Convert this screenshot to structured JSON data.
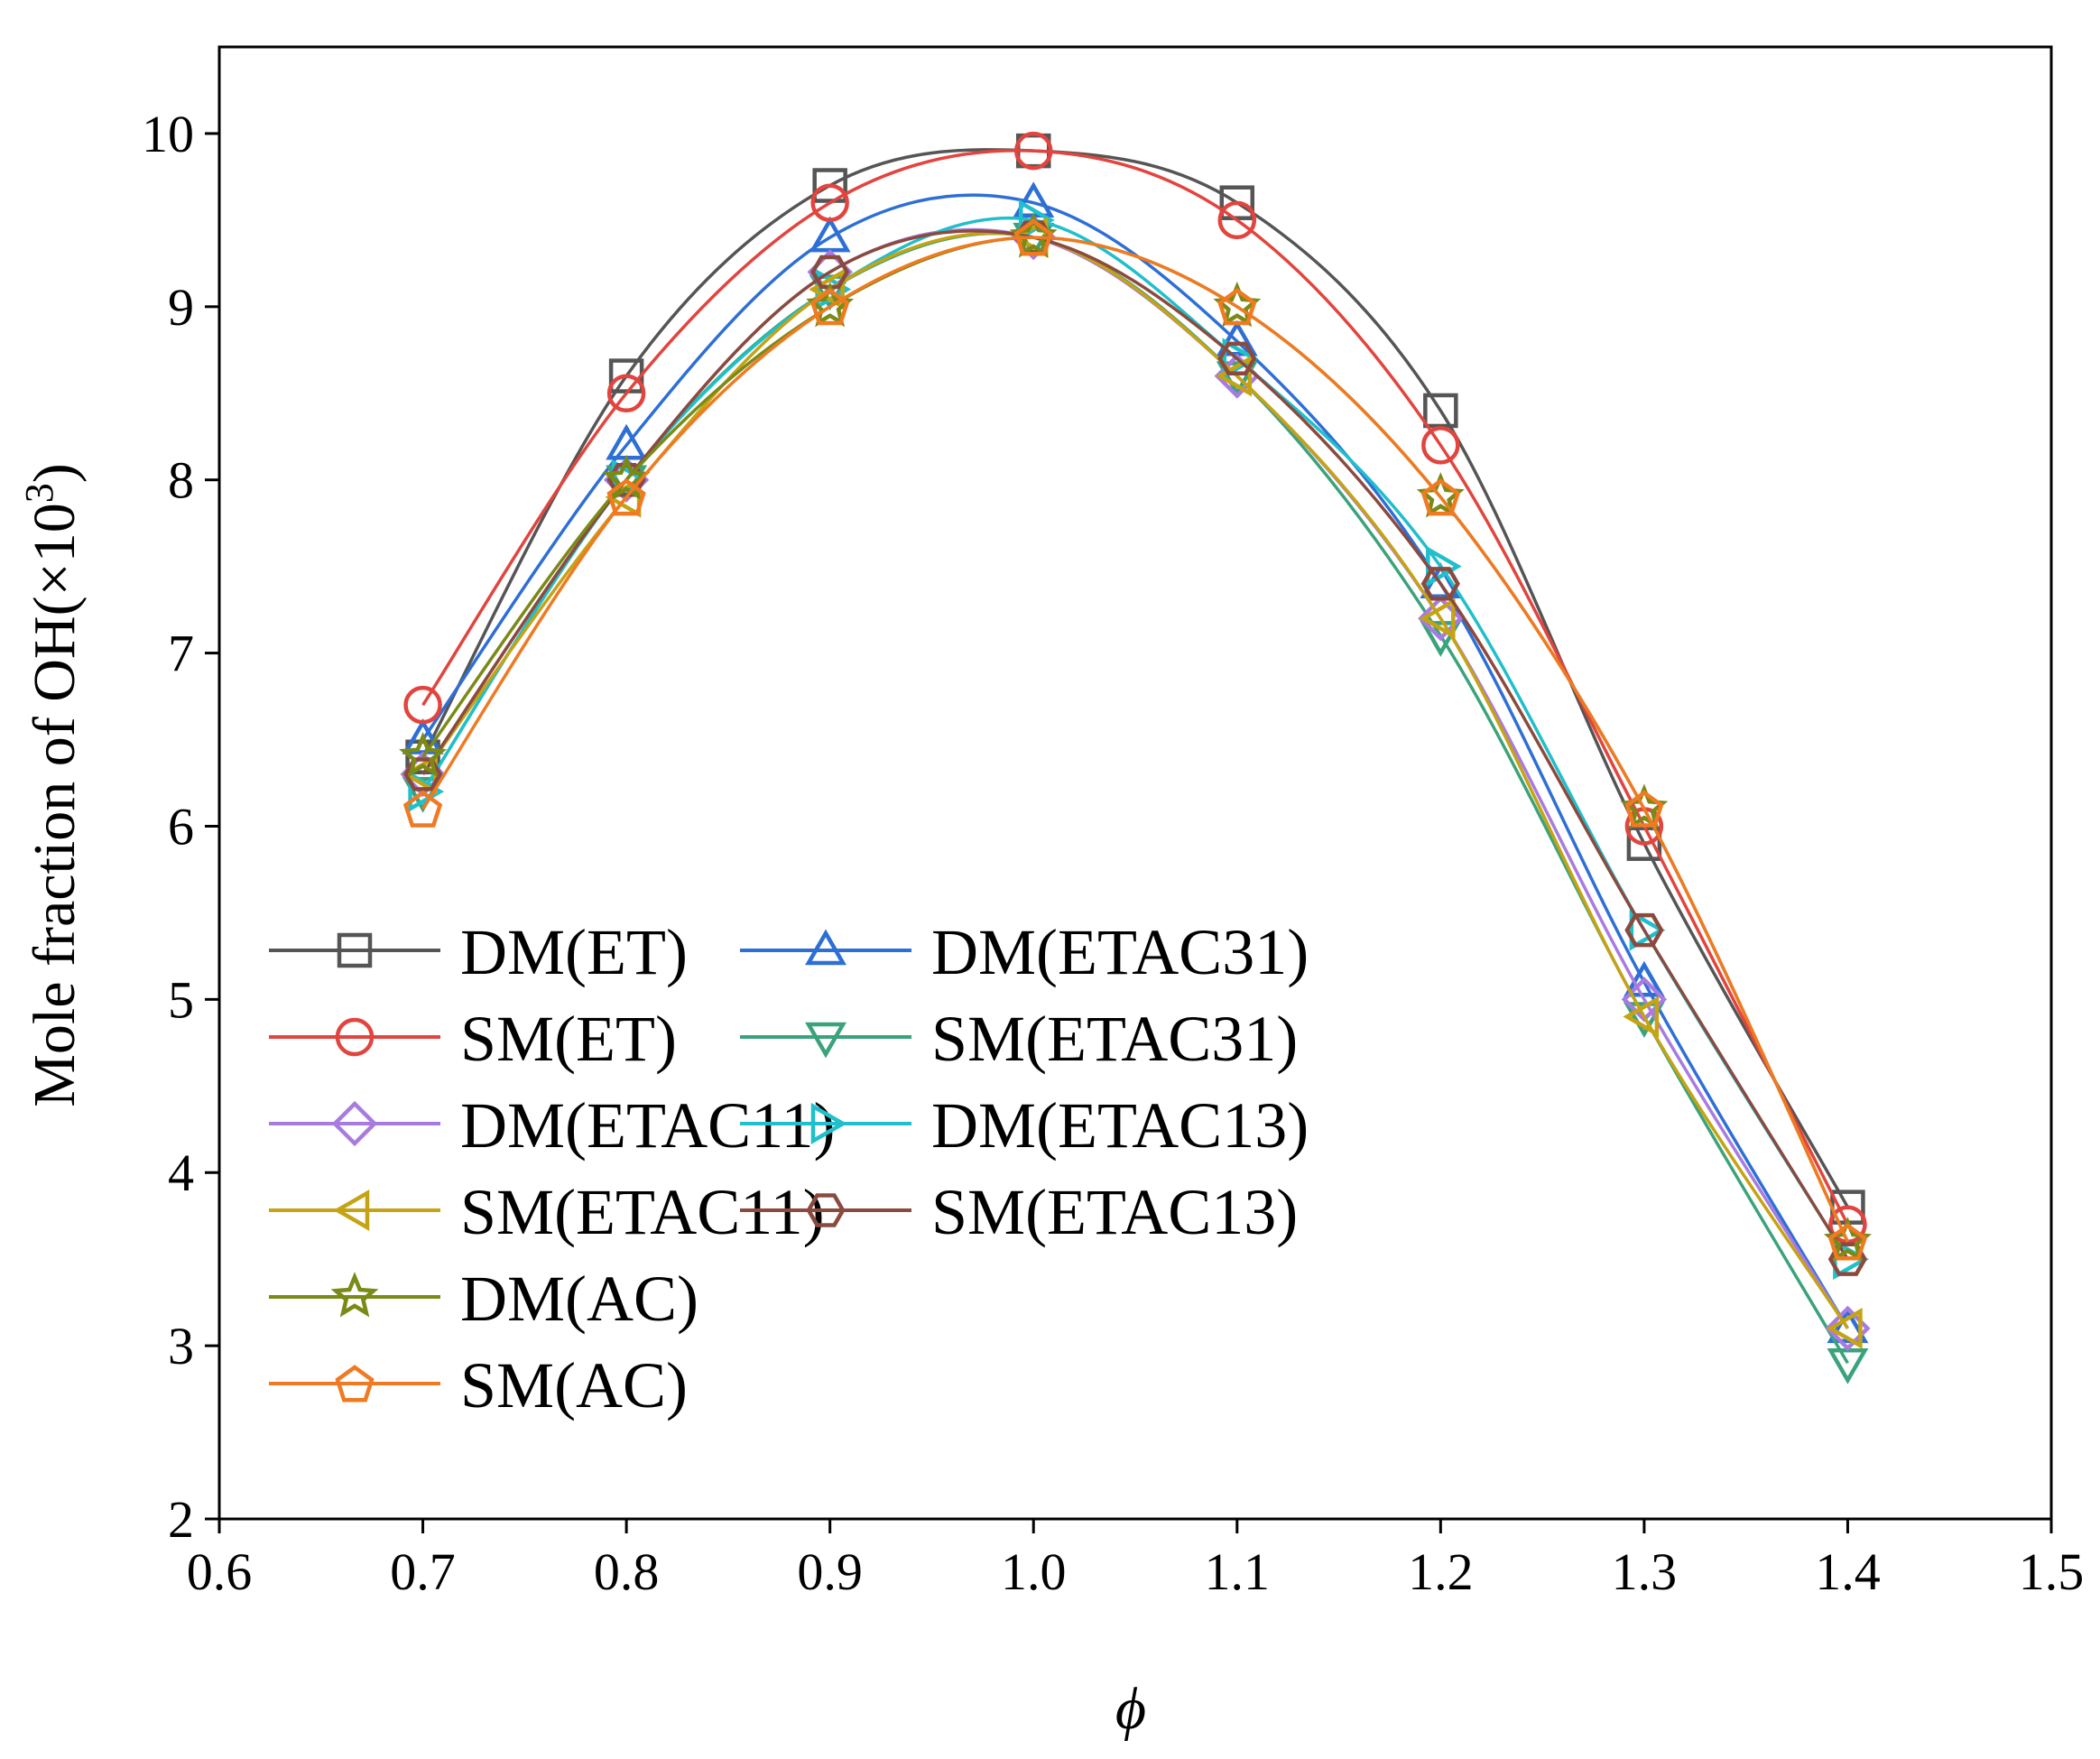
{
  "chart_data": {
    "type": "line",
    "title": "",
    "xlabel": "ϕ",
    "ylabel": "Mole fraction of OH(×10",
    "ylabel_superscript": "3",
    "ylabel_close": ")",
    "xlim": [
      0.6,
      1.5
    ],
    "ylim": [
      2,
      10.5
    ],
    "xticks": [
      "0.6",
      "0.7",
      "0.8",
      "0.9",
      "1.0",
      "1.1",
      "1.2",
      "1.3",
      "1.4",
      "1.5"
    ],
    "yticks": [
      "2",
      "3",
      "4",
      "5",
      "6",
      "7",
      "8",
      "9",
      "10"
    ],
    "x": [
      0.7,
      0.8,
      0.9,
      1.0,
      1.1,
      1.2,
      1.3,
      1.4
    ],
    "grid": false,
    "legend_position": "lower-left",
    "series": [
      {
        "name": "DM(ET)",
        "marker": "square",
        "color": "#555555",
        "values": [
          6.4,
          8.6,
          9.7,
          9.9,
          9.6,
          8.4,
          5.9,
          3.8
        ]
      },
      {
        "name": "DM(ETAC31)",
        "marker": "triangle-up",
        "color": "#2E6FD6",
        "values": [
          6.5,
          8.2,
          9.4,
          9.6,
          8.8,
          7.4,
          5.1,
          3.1
        ]
      },
      {
        "name": "SM(ET)",
        "marker": "circle",
        "color": "#E2443E",
        "values": [
          6.7,
          8.5,
          9.6,
          9.9,
          9.5,
          8.2,
          6.0,
          3.7
        ]
      },
      {
        "name": "SM(ETAC31)",
        "marker": "triangle-down",
        "color": "#3BA37B",
        "values": [
          6.2,
          8.0,
          9.1,
          9.4,
          8.6,
          7.1,
          4.9,
          2.9
        ]
      },
      {
        "name": "DM(ETAC11)",
        "marker": "diamond",
        "color": "#A77BE0",
        "values": [
          6.3,
          8.0,
          9.2,
          9.4,
          8.6,
          7.2,
          5.0,
          3.1
        ]
      },
      {
        "name": "DM(ETAC13)",
        "marker": "triangle-right",
        "color": "#1FBFCB",
        "values": [
          6.2,
          8.0,
          9.1,
          9.5,
          8.7,
          7.5,
          5.4,
          3.5
        ]
      },
      {
        "name": "SM(ETAC11)",
        "marker": "triangle-left",
        "color": "#C5A313",
        "values": [
          6.3,
          7.9,
          9.1,
          9.4,
          8.6,
          7.2,
          4.9,
          3.1
        ]
      },
      {
        "name": "SM(ETAC13)",
        "marker": "hexagon",
        "color": "#8B4A3E",
        "values": [
          6.3,
          8.0,
          9.2,
          9.4,
          8.7,
          7.4,
          5.4,
          3.5
        ]
      },
      {
        "name": "DM(AC)",
        "marker": "star",
        "color": "#7A8A16",
        "values": [
          6.4,
          8.0,
          9.0,
          9.4,
          9.0,
          7.9,
          6.1,
          3.6
        ]
      },
      {
        "name": "SM(AC)",
        "marker": "pentagon",
        "color": "#EF7A22",
        "values": [
          6.1,
          7.9,
          9.0,
          9.4,
          9.0,
          7.9,
          6.1,
          3.6
        ]
      }
    ]
  }
}
